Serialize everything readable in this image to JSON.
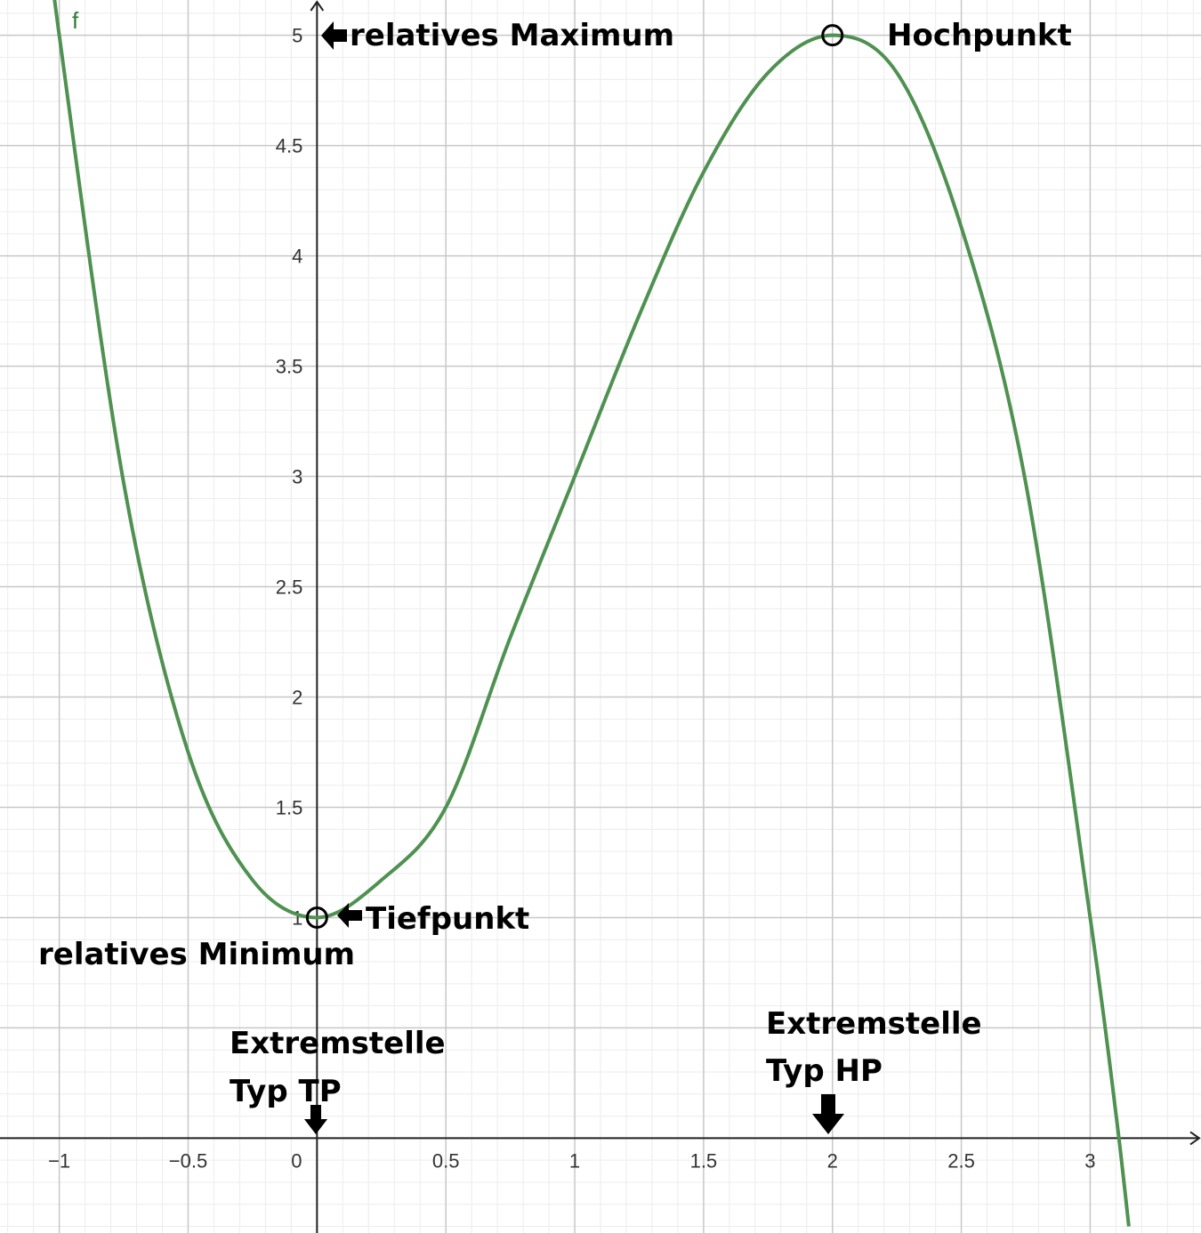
{
  "chart_data": {
    "type": "line",
    "function_name": "f",
    "xlim": [
      -1.23,
      3.43
    ],
    "ylim": [
      -0.43,
      5.16
    ],
    "grid": true,
    "x_ticks": [
      -1,
      -0.5,
      0,
      0.5,
      1,
      1.5,
      2,
      2.5,
      3
    ],
    "x_tick_labels": [
      "−1",
      "−0.5",
      "0",
      "0.5",
      "1",
      "1.5",
      "2",
      "2.5",
      "3"
    ],
    "y_ticks": [
      1,
      1.5,
      2,
      2.5,
      3,
      3.5,
      4,
      4.5,
      5
    ],
    "y_tick_labels": [
      "1",
      "1.5",
      "2",
      "2.5",
      "3",
      "3.5",
      "4",
      "4.5",
      "5"
    ],
    "series": [
      {
        "name": "f",
        "color": "#4e9150",
        "x": [
          -1.05,
          -1,
          -0.75,
          -0.5,
          -0.25,
          0,
          0.25,
          0.5,
          0.75,
          1,
          1.25,
          1.5,
          1.75,
          2,
          2.25,
          2.5,
          2.75,
          3,
          3.1,
          3.15
        ],
        "y": [
          5.52,
          5,
          2.97,
          1.75,
          1.17,
          1,
          1.17,
          1.5,
          2.27,
          3,
          3.73,
          4.38,
          4.83,
          5,
          4.83,
          4.13,
          2.97,
          1,
          0.11,
          -0.4
        ]
      }
    ],
    "points": [
      {
        "label": "Tiefpunkt",
        "x": 0,
        "y": 1
      },
      {
        "label": "Hochpunkt",
        "x": 2,
        "y": 5
      }
    ],
    "annotations": {
      "relatives_maximum": "relatives Maximum",
      "hochpunkt": "Hochpunkt",
      "tiefpunkt": "Tiefpunkt",
      "relatives_minimum": "relatives Minimum",
      "extremstelle_tp_line1": "Extremstelle",
      "extremstelle_tp_line2": "Typ TP",
      "extremstelle_hp_line1": "Extremstelle",
      "extremstelle_hp_line2": "Typ HP"
    }
  }
}
